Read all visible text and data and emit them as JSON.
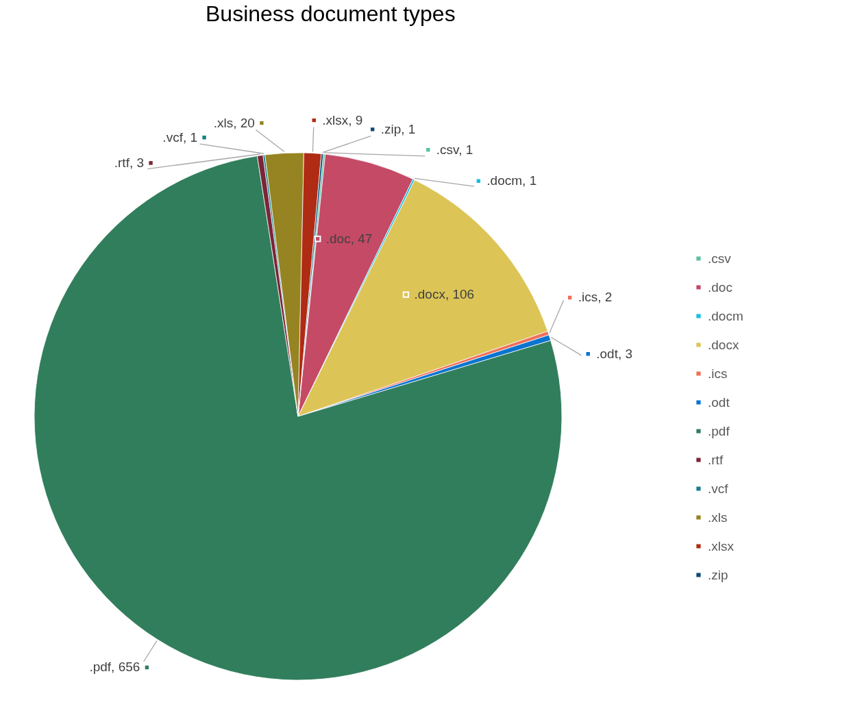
{
  "chart_data": {
    "type": "pie",
    "title": "Business document types",
    "categories": [
      ".csv",
      ".doc",
      ".docm",
      ".docx",
      ".ics",
      ".odt",
      ".pdf",
      ".rtf",
      ".vcf",
      ".xls",
      ".xlsx",
      ".zip"
    ],
    "values": [
      1,
      47,
      1,
      106,
      2,
      3,
      656,
      3,
      1,
      20,
      9,
      1
    ],
    "colors": [
      "#5cc39a",
      "#c44a66",
      "#17bfe0",
      "#dcc457",
      "#f0705a",
      "#0a74d0",
      "#317e5c",
      "#7b2538",
      "#1a7f8c",
      "#968423",
      "#b02b14",
      "#0b4a7c"
    ],
    "value_labels": [
      ".csv, 1",
      ".doc, 47",
      ".docm, 1",
      ".docx, 106",
      ".ics, 2",
      ".odt, 3",
      ".pdf, 656",
      ".rtf, 3",
      ".vcf, 1",
      ".xls, 20",
      ".xlsx, 9",
      ".zip, 1"
    ],
    "legend": "right"
  }
}
